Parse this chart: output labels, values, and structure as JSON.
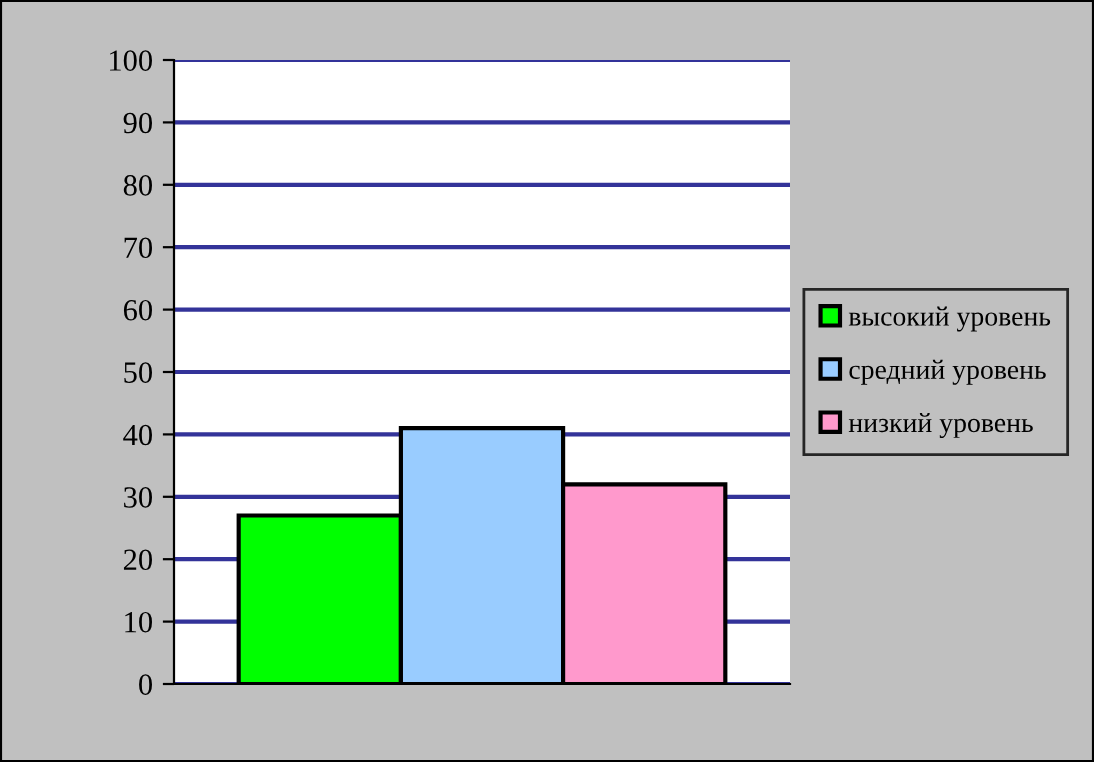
{
  "chart_data": {
    "type": "bar",
    "categories": [
      null
    ],
    "series": [
      {
        "name": "высокий уровень",
        "color": "#00ff00",
        "values": [
          27
        ]
      },
      {
        "name": "средний уровень",
        "color": "#99ccff",
        "values": [
          41
        ]
      },
      {
        "name": "низкий уровень",
        "color": "#ff99cc",
        "values": [
          32
        ]
      }
    ],
    "ylim": [
      0,
      100
    ],
    "yticks": [
      0,
      10,
      20,
      30,
      40,
      50,
      60,
      70,
      80,
      90,
      100
    ],
    "grid": "y",
    "legend": "right"
  }
}
